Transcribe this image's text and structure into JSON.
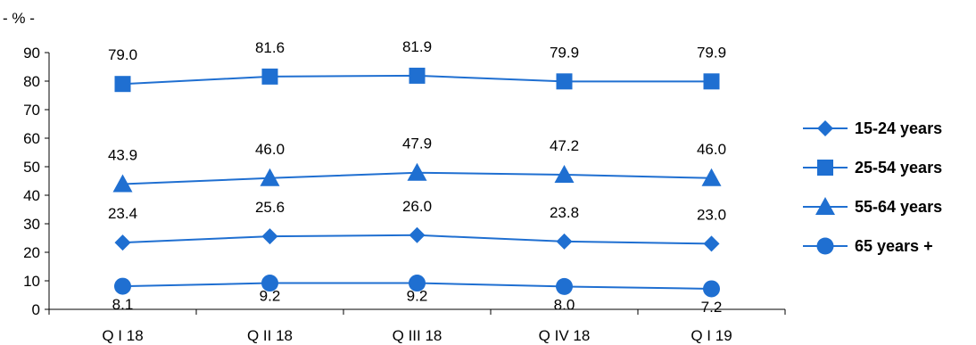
{
  "chart_data": {
    "type": "line",
    "unit_label": "- % -",
    "categories": [
      "Q I 18",
      "Q II 18",
      "Q III 18",
      "Q IV 18",
      "Q I 19"
    ],
    "y_ticks": [
      "0",
      "10",
      "20",
      "30",
      "40",
      "50",
      "60",
      "70",
      "80",
      "90"
    ],
    "ylim": [
      0,
      90
    ],
    "grid": false,
    "legend_position": "right",
    "series_color": "#1f6fd1",
    "series": [
      {
        "name": "15-24 years",
        "marker": "diamond",
        "values": [
          23.4,
          25.6,
          26.0,
          23.8,
          23.0
        ],
        "labels": [
          "23.4",
          "25.6",
          "26.0",
          "23.8",
          "23.0"
        ]
      },
      {
        "name": "25-54 years",
        "marker": "square",
        "values": [
          79.0,
          81.6,
          81.9,
          79.9,
          79.9
        ],
        "labels": [
          "79.0",
          "81.6",
          "81.9",
          "79.9",
          "79.9"
        ]
      },
      {
        "name": "55-64 years",
        "marker": "triangle",
        "values": [
          43.9,
          46.0,
          47.9,
          47.2,
          46.0
        ],
        "labels": [
          "43.9",
          "46.0",
          "47.9",
          "47.2",
          "46.0"
        ]
      },
      {
        "name": "65 years +",
        "marker": "circle",
        "values": [
          8.1,
          9.2,
          9.2,
          8.0,
          7.2
        ],
        "labels": [
          "8.1",
          "9.2",
          "9.2",
          "8.0",
          "7.2"
        ]
      }
    ]
  }
}
